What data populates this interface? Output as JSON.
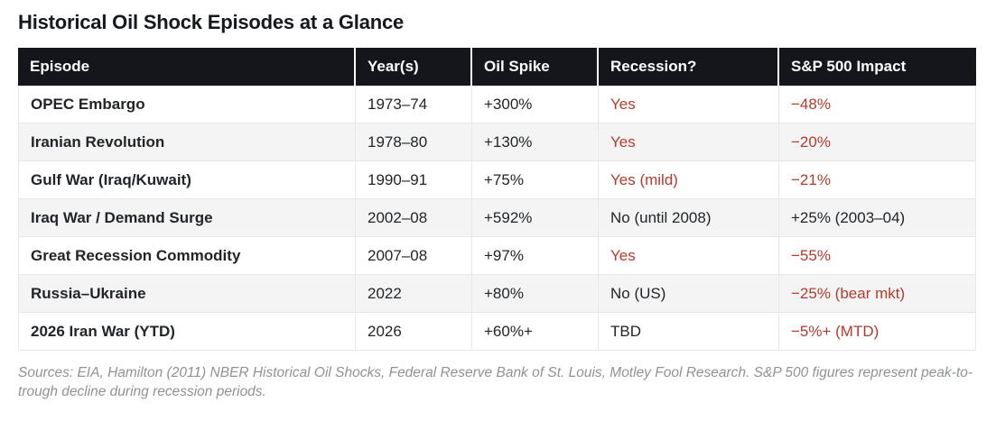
{
  "page": {
    "title": "Historical Oil Shock Episodes at a Glance"
  },
  "table": {
    "columns": [
      "Episode",
      "Year(s)",
      "Oil Spike",
      "Recession?",
      "S&P 500 Impact"
    ],
    "rows": [
      {
        "cells": [
          {
            "text": "OPEC Embargo",
            "bold": true
          },
          {
            "text": "1973–74"
          },
          {
            "text": "+300%"
          },
          {
            "text": "Yes",
            "red": true
          },
          {
            "text": "−48%",
            "red": true
          }
        ]
      },
      {
        "cells": [
          {
            "text": "Iranian Revolution",
            "bold": true
          },
          {
            "text": "1978–80"
          },
          {
            "text": "+130%"
          },
          {
            "text": "Yes",
            "red": true
          },
          {
            "text": "−20%",
            "red": true
          }
        ]
      },
      {
        "cells": [
          {
            "text": "Gulf War (Iraq/Kuwait)",
            "bold": true
          },
          {
            "text": "1990–91"
          },
          {
            "text": "+75%"
          },
          {
            "text": "Yes (mild)",
            "red": true
          },
          {
            "text": "−21%",
            "red": true
          }
        ]
      },
      {
        "cells": [
          {
            "text": "Iraq War / Demand Surge",
            "bold": true
          },
          {
            "text": "2002–08"
          },
          {
            "text": "+592%"
          },
          {
            "text": "No (until 2008)"
          },
          {
            "text": "+25% (2003–04)"
          }
        ]
      },
      {
        "cells": [
          {
            "text": "Great Recession Commodity",
            "bold": true
          },
          {
            "text": "2007–08"
          },
          {
            "text": "+97%"
          },
          {
            "text": "Yes",
            "red": true
          },
          {
            "text": "−55%",
            "red": true
          }
        ]
      },
      {
        "cells": [
          {
            "text": "Russia–Ukraine",
            "bold": true
          },
          {
            "text": "2022"
          },
          {
            "text": "+80%"
          },
          {
            "text": "No (US)"
          },
          {
            "text": "−25% (bear mkt)",
            "red": true
          }
        ]
      },
      {
        "cells": [
          {
            "text": "2026 Iran War (YTD)",
            "bold": true
          },
          {
            "text": "2026"
          },
          {
            "text": "+60%+"
          },
          {
            "text": "TBD"
          },
          {
            "text": "−5%+ (MTD)",
            "red": true
          }
        ]
      }
    ]
  },
  "footnote": "Sources: EIA, Hamilton (2011) NBER Historical Oil Shocks, Federal Reserve Bank of St. Louis, Motley Fool Research. S&P 500 figures represent peak-to-trough decline during recession periods.",
  "colors": {
    "header_bg": "#14161c",
    "accent_red": "#b33b2e",
    "row_alt_bg": "#f4f4f4",
    "border": "#e8e8e8",
    "footnote_gray": "#8f9296"
  },
  "chart_data": {
    "type": "table",
    "title": "Historical Oil Shock Episodes at a Glance",
    "columns": [
      "Episode",
      "Year(s)",
      "Oil Spike",
      "Recession?",
      "S&P 500 Impact"
    ],
    "rows": [
      [
        "OPEC Embargo",
        "1973–74",
        "+300%",
        "Yes",
        "−48%"
      ],
      [
        "Iranian Revolution",
        "1978–80",
        "+130%",
        "Yes",
        "−20%"
      ],
      [
        "Gulf War (Iraq/Kuwait)",
        "1990–91",
        "+75%",
        "Yes (mild)",
        "−21%"
      ],
      [
        "Iraq War / Demand Surge",
        "2002–08",
        "+592%",
        "No (until 2008)",
        "+25% (2003–04)"
      ],
      [
        "Great Recession Commodity",
        "2007–08",
        "+97%",
        "Yes",
        "−55%"
      ],
      [
        "Russia–Ukraine",
        "2022",
        "+80%",
        "No (US)",
        "−25% (bear mkt)"
      ],
      [
        "2026 Iran War (YTD)",
        "2026",
        "+60%+",
        "TBD",
        "−5%+ (MTD)"
      ]
    ],
    "notes": "Sources: EIA, Hamilton (2011) NBER Historical Oil Shocks, Federal Reserve Bank of St. Louis, Motley Fool Research. S&P 500 figures represent peak-to-trough decline during recession periods.",
    "style": {
      "negative_highlight_color": "#b33b2e",
      "header_background": "#14161c",
      "zebra_striping": true
    }
  }
}
